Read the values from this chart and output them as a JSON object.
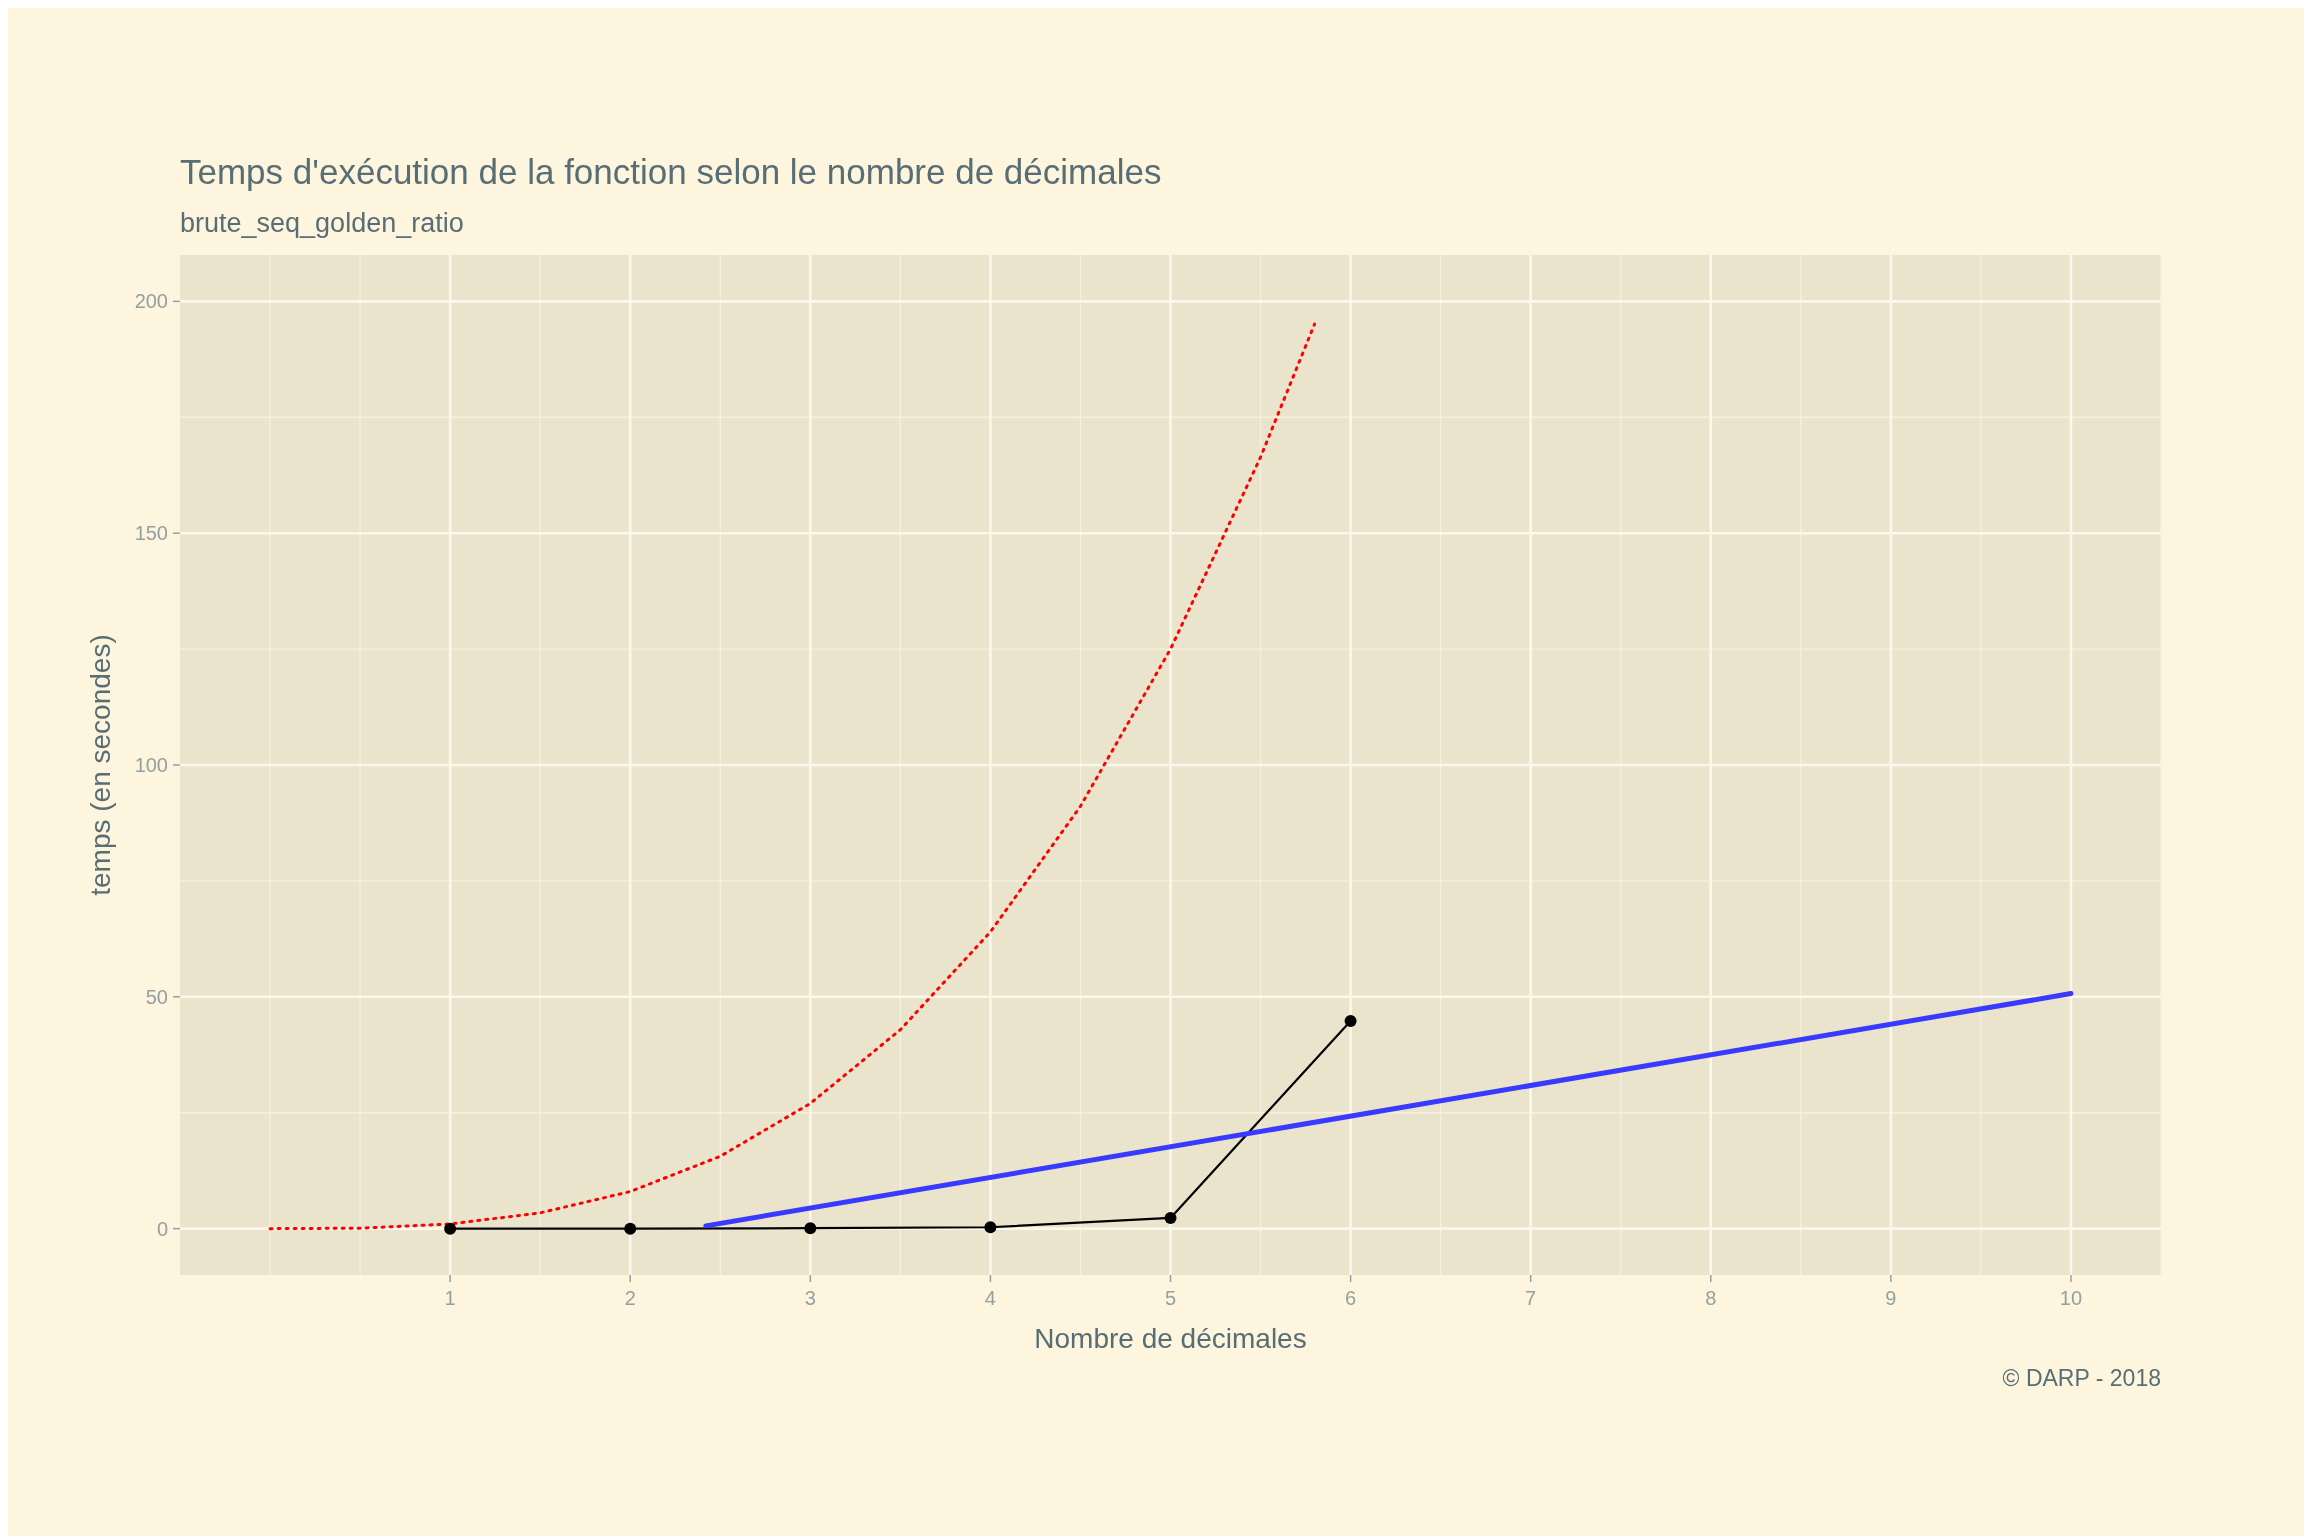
{
  "chart_data": {
    "type": "line",
    "title": "Temps d'exécution de la fonction selon le nombre de décimales",
    "subtitle": "brute_seq_golden_ratio",
    "xlabel": "Nombre de décimales",
    "ylabel": "temps (en secondes)",
    "annotations": [
      "© DARP - 2018"
    ],
    "xlim": [
      -0.5,
      10.5
    ],
    "xticks": [
      1,
      2,
      3,
      4,
      5,
      6,
      7,
      8,
      9,
      10
    ],
    "ylim": [
      -10,
      210
    ],
    "yticks": [
      0,
      50,
      100,
      150,
      200
    ],
    "grid": true,
    "series": [
      {
        "color": "#ff0000",
        "line_style": "dotted",
        "marker": "none",
        "x": [
          0,
          0.5,
          1,
          1.5,
          2,
          2.5,
          3,
          3.5,
          4,
          4.5,
          5,
          5.5,
          5.8
        ],
        "values": [
          0,
          0.1,
          1,
          3.4,
          8,
          15.6,
          27,
          42.9,
          64,
          91.1,
          125,
          166.4,
          195.1
        ]
      },
      {
        "color": "#000000",
        "line_style": "solid",
        "marker": "circle",
        "x": [
          1,
          2,
          3,
          4,
          5,
          6
        ],
        "values": [
          0,
          0,
          0.1,
          0.3,
          2.3,
          44.8
        ]
      },
      {
        "color": "#3a3aff",
        "line_style": "solid",
        "marker": "none",
        "x": [
          2.42,
          10
        ],
        "values": [
          0.6,
          50.7
        ]
      }
    ]
  }
}
